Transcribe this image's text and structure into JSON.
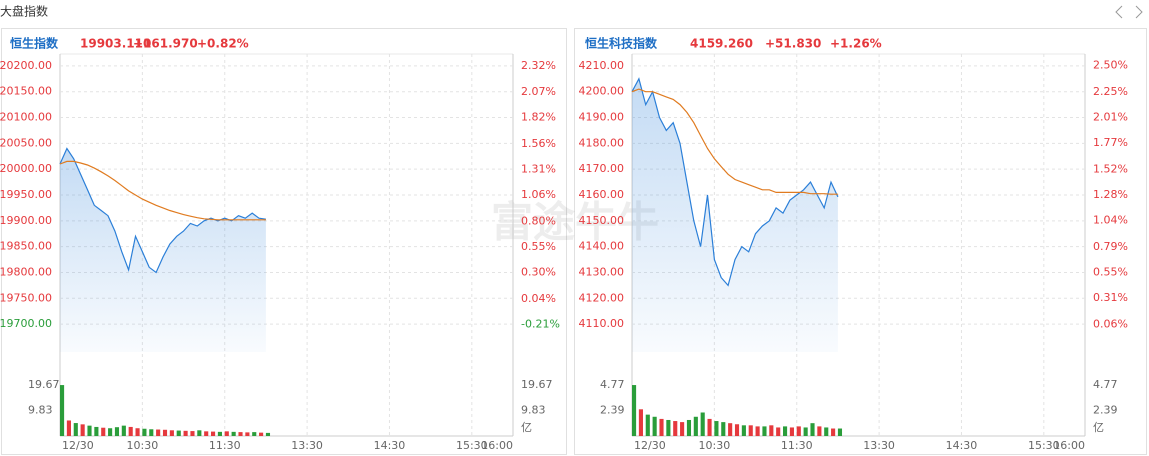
{
  "header": {
    "title": "大盘指数",
    "watermark": "富途牛牛"
  },
  "chart_data": [
    {
      "type": "line",
      "title": "恒生指数",
      "last": "19903.110",
      "change": "+161.970",
      "change_pct": "+0.82%",
      "x": [
        0,
        5,
        10,
        15,
        20,
        25,
        30,
        35,
        40,
        45,
        50,
        55,
        60,
        65,
        70,
        75,
        80,
        85,
        90,
        95,
        100,
        105,
        110,
        115,
        120,
        125,
        130,
        135,
        140,
        145,
        150
      ],
      "xlim": [
        0,
        330
      ],
      "xticks": [
        {
          "value": 0,
          "label": "12/30"
        },
        {
          "value": 60,
          "label": "10:30"
        },
        {
          "value": 120,
          "label": "11:30"
        },
        {
          "value": 180,
          "label": "13:30"
        },
        {
          "value": 240,
          "label": "14:30"
        },
        {
          "value": 300,
          "label": "15:30"
        },
        {
          "value": 330,
          "label": "16:00"
        }
      ],
      "ylim": [
        19646,
        20223
      ],
      "yticks": [
        {
          "value": 20200,
          "label": "20200.00"
        },
        {
          "value": 20150,
          "label": "20150.00"
        },
        {
          "value": 20100,
          "label": "20100.00"
        },
        {
          "value": 20050,
          "label": "20050.00"
        },
        {
          "value": 20000,
          "label": "20000.00"
        },
        {
          "value": 19950,
          "label": "19950.00"
        },
        {
          "value": 19900,
          "label": "19900.00"
        },
        {
          "value": 19850,
          "label": "19850.00"
        },
        {
          "value": 19800,
          "label": "19800.00"
        },
        {
          "value": 19750,
          "label": "19750.00"
        },
        {
          "value": 19700,
          "label": "19700.00"
        }
      ],
      "y2lim": [
        -0.48,
        2.44
      ],
      "y2ticks": [
        {
          "value": 2.32,
          "label": "2.32%"
        },
        {
          "value": 2.07,
          "label": "2.07%"
        },
        {
          "value": 1.82,
          "label": "1.82%"
        },
        {
          "value": 1.56,
          "label": "1.56%"
        },
        {
          "value": 1.31,
          "label": "1.31%"
        },
        {
          "value": 1.06,
          "label": "1.06%"
        },
        {
          "value": 0.8,
          "label": "0.80%"
        },
        {
          "value": 0.55,
          "label": "0.55%"
        },
        {
          "value": 0.3,
          "label": "0.30%"
        },
        {
          "value": 0.04,
          "label": "0.04%"
        },
        {
          "value": -0.21,
          "label": "-0.21%"
        }
      ],
      "series": [
        {
          "color": "#2b7fd8",
          "fill": true,
          "values": [
            20010,
            20040,
            20020,
            19990,
            19960,
            19930,
            19920,
            19910,
            19880,
            19840,
            19805,
            19870,
            19840,
            19810,
            19800,
            19830,
            19855,
            19870,
            19880,
            19895,
            19890,
            19900,
            19905,
            19900,
            19905,
            19900,
            19910,
            19905,
            19915,
            19905,
            19903.11
          ]
        },
        {
          "color": "#e07b20",
          "fill": false,
          "values": [
            20010,
            20015,
            20015,
            20012,
            20008,
            20002,
            19995,
            19987,
            19978,
            19968,
            19958,
            19950,
            19942,
            19936,
            19930,
            19925,
            19920,
            19916,
            19912,
            19909,
            19906,
            19904,
            19903,
            19902,
            19902,
            19902,
            19902,
            19902,
            19902,
            19902,
            19902
          ]
        }
      ],
      "volume": {
        "unit": "亿",
        "ylim": [
          0,
          22.4
        ],
        "yticks": [
          19.67,
          9.83
        ],
        "values": [
          19.67,
          6,
          5,
          4.5,
          4,
          3.5,
          3.2,
          3,
          3.4,
          4,
          3.5,
          3,
          2.8,
          2.6,
          2.5,
          2.4,
          2.2,
          2.1,
          2,
          1.9,
          2.2,
          1.8,
          1.7,
          1.6,
          1.8,
          1.6,
          1.5,
          1.4,
          1.5,
          1.3,
          1.2
        ],
        "colors": [
          "#2a9d3a",
          "#e5393d",
          "#2a9d3a",
          "#e5393d",
          "#2a9d3a",
          "#2a9d3a",
          "#e5393d",
          "#2a9d3a",
          "#2a9d3a",
          "#2a9d3a",
          "#e5393d",
          "#e5393d",
          "#2a9d3a",
          "#2a9d3a",
          "#e5393d",
          "#e5393d",
          "#e5393d",
          "#2a9d3a",
          "#e5393d",
          "#e5393d",
          "#2a9d3a",
          "#e5393d",
          "#e5393d",
          "#2a9d3a",
          "#e5393d",
          "#2a9d3a",
          "#e5393d",
          "#e5393d",
          "#2a9d3a",
          "#e5393d",
          "#2a9d3a"
        ]
      }
    },
    {
      "type": "line",
      "title": "恒生科技指数",
      "last": "4159.260",
      "change": "+51.830",
      "change_pct": "+1.26%",
      "x": [
        0,
        5,
        10,
        15,
        20,
        25,
        30,
        35,
        40,
        45,
        50,
        55,
        60,
        65,
        70,
        75,
        80,
        85,
        90,
        95,
        100,
        105,
        110,
        115,
        120,
        125,
        130,
        135,
        140,
        145,
        150
      ],
      "xlim": [
        0,
        330
      ],
      "xticks": [
        {
          "value": 0,
          "label": "12/30"
        },
        {
          "value": 60,
          "label": "10:30"
        },
        {
          "value": 120,
          "label": "11:30"
        },
        {
          "value": 180,
          "label": "13:30"
        },
        {
          "value": 240,
          "label": "14:30"
        },
        {
          "value": 300,
          "label": "15:30"
        },
        {
          "value": 330,
          "label": "16:00"
        }
      ],
      "ylim": [
        4099.2,
        4214.6
      ],
      "yticks": [
        {
          "value": 4210,
          "label": "4210.00"
        },
        {
          "value": 4200,
          "label": "4200.00"
        },
        {
          "value": 4190,
          "label": "4190.00"
        },
        {
          "value": 4180,
          "label": "4180.00"
        },
        {
          "value": 4170,
          "label": "4170.00"
        },
        {
          "value": 4160,
          "label": "4160.00"
        },
        {
          "value": 4150,
          "label": "4150.00"
        },
        {
          "value": 4140,
          "label": "4140.00"
        },
        {
          "value": 4130,
          "label": "4130.00"
        },
        {
          "value": 4120,
          "label": "4120.00"
        },
        {
          "value": 4110,
          "label": "4110.00"
        }
      ],
      "y2lim": [
        -0.2,
        2.61
      ],
      "y2ticks": [
        {
          "value": 2.5,
          "label": "2.50%"
        },
        {
          "value": 2.25,
          "label": "2.25%"
        },
        {
          "value": 2.01,
          "label": "2.01%"
        },
        {
          "value": 1.77,
          "label": "1.77%"
        },
        {
          "value": 1.52,
          "label": "1.52%"
        },
        {
          "value": 1.28,
          "label": "1.28%"
        },
        {
          "value": 1.04,
          "label": "1.04%"
        },
        {
          "value": 0.79,
          "label": "0.79%"
        },
        {
          "value": 0.55,
          "label": "0.55%"
        },
        {
          "value": 0.31,
          "label": "0.31%"
        },
        {
          "value": 0.06,
          "label": "0.06%"
        }
      ],
      "series": [
        {
          "color": "#2b7fd8",
          "fill": true,
          "values": [
            4200,
            4205,
            4195,
            4200,
            4190,
            4185,
            4188,
            4180,
            4165,
            4150,
            4140,
            4160,
            4135,
            4128,
            4125,
            4135,
            4140,
            4138,
            4145,
            4148,
            4150,
            4155,
            4153,
            4158,
            4160,
            4162,
            4165,
            4160,
            4155,
            4165,
            4159.26
          ]
        },
        {
          "color": "#e07b20",
          "fill": false,
          "values": [
            4200,
            4201,
            4200,
            4200,
            4199,
            4198,
            4197,
            4195,
            4192,
            4188,
            4183,
            4178,
            4174,
            4171,
            4168,
            4166,
            4165,
            4164,
            4163,
            4162,
            4162,
            4161,
            4161,
            4161,
            4161,
            4161,
            4160.5,
            4160.5,
            4160.5,
            4160.3,
            4160.3
          ]
        }
      ],
      "volume": {
        "unit": "亿",
        "ylim": [
          0,
          5.43
        ],
        "yticks": [
          4.77,
          2.39
        ],
        "values": [
          4.77,
          2.5,
          2,
          1.8,
          1.6,
          1.5,
          1.4,
          1.3,
          1.5,
          1.8,
          2.2,
          1.6,
          1.4,
          1.3,
          1.2,
          1.1,
          1,
          1,
          0.9,
          0.9,
          1,
          0.8,
          0.9,
          0.8,
          0.9,
          0.8,
          1.2,
          0.9,
          0.8,
          0.7,
          0.7
        ],
        "colors": [
          "#2a9d3a",
          "#e5393d",
          "#2a9d3a",
          "#2a9d3a",
          "#e5393d",
          "#2a9d3a",
          "#e5393d",
          "#e5393d",
          "#2a9d3a",
          "#2a9d3a",
          "#2a9d3a",
          "#e5393d",
          "#2a9d3a",
          "#2a9d3a",
          "#e5393d",
          "#e5393d",
          "#2a9d3a",
          "#e5393d",
          "#e5393d",
          "#2a9d3a",
          "#e5393d",
          "#e5393d",
          "#2a9d3a",
          "#e5393d",
          "#e5393d",
          "#2a9d3a",
          "#2a9d3a",
          "#e5393d",
          "#2a9d3a",
          "#e5393d",
          "#2a9d3a"
        ]
      }
    }
  ]
}
